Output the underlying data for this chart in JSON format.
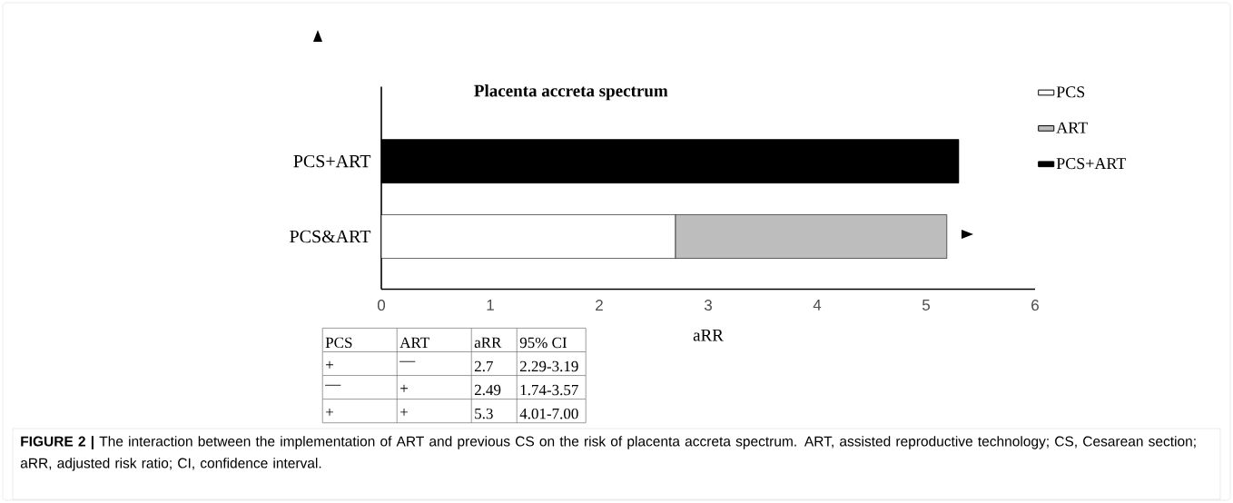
{
  "chart_data": {
    "type": "bar",
    "orientation": "horizontal",
    "stacked": true,
    "title": "Placenta accreta spectrum",
    "xlabel": "aRR",
    "categories": [
      "PCS+ART",
      "PCS&ART"
    ],
    "series": [
      {
        "name": "PCS",
        "color": "#ffffff",
        "values": [
          null,
          2.7
        ]
      },
      {
        "name": "ART",
        "color": "#bdbdbd",
        "values": [
          null,
          2.49
        ]
      },
      {
        "name": "PCS+ART",
        "color": "#000000",
        "values": [
          5.3,
          null
        ]
      }
    ],
    "xlim": [
      0,
      6
    ],
    "xticks": [
      0,
      1,
      2,
      3,
      4,
      5,
      6
    ],
    "grid": false,
    "legend": "right",
    "annotations": [
      "PCS",
      "ART",
      "aRR",
      "95% CI",
      "+",
      "—",
      "2.7",
      "2.29-3.19",
      "—",
      "+",
      "2.49",
      "1.74-3.57",
      "+",
      "+",
      "5.3",
      "4.01-7.00",
      "**FIGURE 2 |** The interaction between the implementation of ART and previous CS on the risk of placenta accreta spectrum. ART, assisted reproductive technology; CS, Cesarean section; aRR, adjusted risk ratio; CI, confidence interval."
    ]
  }
}
